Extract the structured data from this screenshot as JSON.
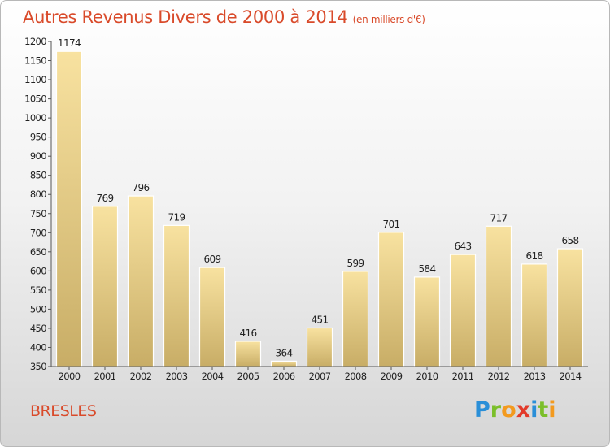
{
  "title": "Autres Revenus Divers de 2000 à 2014",
  "subtitle": "(en milliers d'€)",
  "city": "BRESLES",
  "brand": {
    "letters": [
      "P",
      "r",
      "o",
      "x",
      "i",
      "t",
      "i"
    ],
    "colors": [
      "#2a8fd8",
      "#7bbf2a",
      "#f39a1e",
      "#e23a2a",
      "#2a8fd8",
      "#7bbf2a",
      "#f39a1e"
    ]
  },
  "colors": {
    "accent": "#d94a2a",
    "bar_light": "#f8e2a0",
    "bar_dark": "#c8ad66",
    "bar_border": "#ffffff"
  },
  "chart_data": {
    "type": "bar",
    "categories": [
      "2000",
      "2001",
      "2002",
      "2003",
      "2004",
      "2005",
      "2006",
      "2007",
      "2008",
      "2009",
      "2010",
      "2011",
      "2012",
      "2013",
      "2014"
    ],
    "values": [
      1174,
      769,
      796,
      719,
      609,
      416,
      364,
      451,
      599,
      701,
      584,
      643,
      717,
      618,
      658
    ],
    "value_labels": [
      "1174",
      "769",
      "796",
      "719",
      "609",
      "416",
      "364",
      "451",
      "599",
      "701",
      "584",
      "643",
      "717",
      "618",
      "658"
    ],
    "yticks": [
      350,
      400,
      450,
      500,
      550,
      600,
      650,
      700,
      750,
      800,
      850,
      900,
      950,
      1000,
      1050,
      1100,
      1150,
      1200
    ],
    "ytick_labels": [
      "350",
      "400",
      "450",
      "500",
      "550",
      "600",
      "650",
      "700",
      "750",
      "800",
      "850",
      "900",
      "950",
      "1000",
      "1050",
      "1100",
      "1150",
      "1200"
    ],
    "ylim": [
      350,
      1200
    ],
    "xlabel": "",
    "ylabel": "",
    "grid": false
  }
}
